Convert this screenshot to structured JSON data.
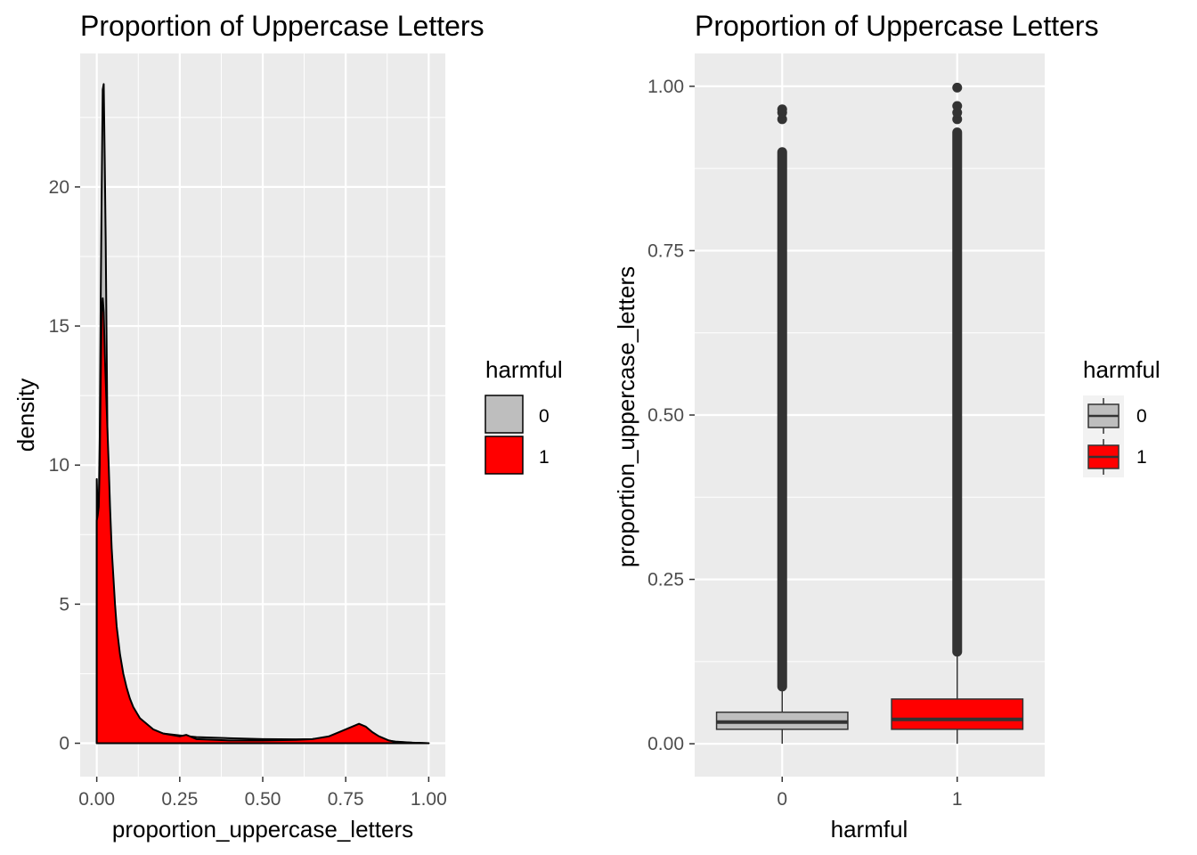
{
  "chart_data": [
    {
      "type": "area",
      "subtype": "density",
      "title": "Proportion of Uppercase Letters",
      "xlabel": "proportion_uppercase_letters",
      "ylabel": "density",
      "xlim": [
        -0.05,
        1.05
      ],
      "ylim": [
        -1.2,
        24.8
      ],
      "x_ticks": [
        0.0,
        0.25,
        0.5,
        0.75,
        1.0
      ],
      "x_tick_labels": [
        "0.00",
        "0.25",
        "0.50",
        "0.75",
        "1.00"
      ],
      "y_ticks": [
        0,
        5,
        10,
        15,
        20
      ],
      "y_tick_labels": [
        "0",
        "5",
        "10",
        "15",
        "20"
      ],
      "grid": true,
      "legend": {
        "title": "harmful",
        "position": "right",
        "labels": [
          "0",
          "1"
        ]
      },
      "series": [
        {
          "name": "0",
          "color": "#bebebe",
          "x": [
            0.0,
            0.003,
            0.006,
            0.009,
            0.012,
            0.015,
            0.018,
            0.021,
            0.024,
            0.027,
            0.03,
            0.033,
            0.036,
            0.04,
            0.045,
            0.05,
            0.055,
            0.06,
            0.07,
            0.08,
            0.09,
            0.1,
            0.11,
            0.12,
            0.13,
            0.14,
            0.15,
            0.17,
            0.2,
            0.25,
            0.3,
            0.4,
            0.5,
            0.6,
            0.65,
            0.7,
            0.73,
            0.76,
            0.78,
            0.8,
            0.82,
            0.84,
            0.86,
            0.9,
            0.95,
            1.0
          ],
          "y": [
            9.5,
            8.2,
            8.5,
            11,
            16,
            20,
            23.5,
            23.7,
            21,
            18,
            14,
            10,
            8,
            6.5,
            5,
            4,
            3.5,
            3,
            2.2,
            1.7,
            1.4,
            1.2,
            1.0,
            0.9,
            0.75,
            0.65,
            0.55,
            0.45,
            0.35,
            0.28,
            0.22,
            0.18,
            0.15,
            0.14,
            0.15,
            0.2,
            0.25,
            0.3,
            0.35,
            0.32,
            0.25,
            0.18,
            0.12,
            0.06,
            0.02,
            0.0
          ]
        },
        {
          "name": "1",
          "color": "#ff0000",
          "x": [
            0.0,
            0.003,
            0.006,
            0.009,
            0.012,
            0.015,
            0.018,
            0.021,
            0.024,
            0.027,
            0.03,
            0.033,
            0.036,
            0.04,
            0.045,
            0.05,
            0.055,
            0.06,
            0.07,
            0.08,
            0.09,
            0.1,
            0.11,
            0.12,
            0.13,
            0.14,
            0.15,
            0.17,
            0.2,
            0.25,
            0.27,
            0.3,
            0.4,
            0.5,
            0.6,
            0.65,
            0.7,
            0.73,
            0.75,
            0.77,
            0.79,
            0.81,
            0.83,
            0.85,
            0.88,
            0.9,
            0.95,
            1.0
          ],
          "y": [
            8.0,
            8.2,
            8.5,
            10,
            13,
            15.5,
            16.0,
            15.5,
            14,
            13,
            12,
            11,
            10,
            8.5,
            7,
            6,
            5,
            4.2,
            3.2,
            2.5,
            2.0,
            1.6,
            1.3,
            1.1,
            0.9,
            0.8,
            0.7,
            0.5,
            0.35,
            0.25,
            0.3,
            0.15,
            0.1,
            0.1,
            0.12,
            0.15,
            0.25,
            0.4,
            0.5,
            0.6,
            0.7,
            0.6,
            0.4,
            0.25,
            0.1,
            0.05,
            0.02,
            0.0
          ]
        }
      ]
    },
    {
      "type": "boxplot",
      "title": "Proportion of Uppercase Letters",
      "xlabel": "harmful",
      "ylabel": "proportion_uppercase_letters",
      "categories": [
        "0",
        "1"
      ],
      "ylim": [
        -0.05,
        1.05
      ],
      "y_ticks": [
        0.0,
        0.25,
        0.5,
        0.75,
        1.0
      ],
      "y_tick_labels": [
        "0.00",
        "0.25",
        "0.50",
        "0.75",
        "1.00"
      ],
      "grid": true,
      "legend": {
        "title": "harmful",
        "position": "right",
        "labels": [
          "0",
          "1"
        ]
      },
      "series": [
        {
          "name": "0",
          "color": "#bebebe",
          "min": 0.0,
          "q1": 0.022,
          "median": 0.033,
          "q3": 0.048,
          "whisker_high": 0.087,
          "outlier_range": [
            0.087,
            0.9
          ],
          "outliers_extra": [
            0.95,
            0.96,
            0.965
          ]
        },
        {
          "name": "1",
          "color": "#ff0000",
          "min": 0.0,
          "q1": 0.022,
          "median": 0.037,
          "q3": 0.068,
          "whisker_high": 0.14,
          "outlier_range": [
            0.14,
            0.93
          ],
          "outliers_extra": [
            0.95,
            0.96,
            0.97,
            0.998
          ]
        }
      ]
    }
  ]
}
